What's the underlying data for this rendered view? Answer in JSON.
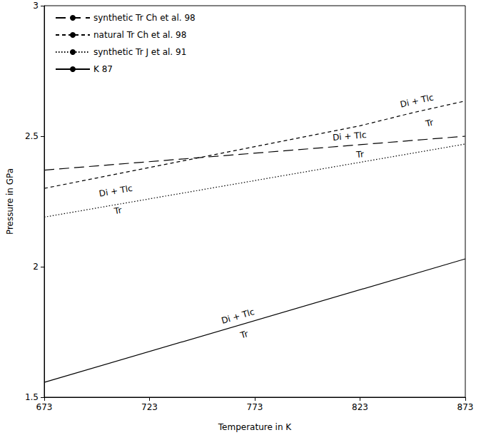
{
  "chart_data": {
    "type": "line",
    "x_label": "Temperature in K",
    "y_label": "Pressure in GPa",
    "xlim": [
      673,
      873
    ],
    "xticks": [
      673,
      723,
      773,
      823,
      873
    ],
    "ylim": [
      1.5,
      3
    ],
    "yticks": [
      1.5,
      2,
      2.5,
      3
    ],
    "grid": false,
    "legend": "upper left",
    "series": [
      {
        "name": "synthetic Tr Ch et al. 98",
        "color": "#000000",
        "line_style": "long_dash",
        "x": [
          673,
          873
        ],
        "values": [
          2.37,
          2.5
        ]
      },
      {
        "name": "natural Tr Ch et al. 98",
        "color": "#000000",
        "line_style": "dashed",
        "x": [
          673,
          698,
          723,
          748,
          773,
          798,
          823,
          848,
          873
        ],
        "values": [
          2.3,
          2.34,
          2.38,
          2.42,
          2.46,
          2.5,
          2.54,
          2.59,
          2.635
        ]
      },
      {
        "name": "synthetic Tr J et al. 91",
        "color": "#000000",
        "line_style": "dotted",
        "x": [
          673,
          873
        ],
        "values": [
          2.19,
          2.47
        ]
      },
      {
        "name": "K 87",
        "color": "#000000",
        "line_style": "solid",
        "x": [
          673,
          873
        ],
        "values": [
          1.557,
          2.03
        ]
      }
    ],
    "annotations": [
      {
        "text": "Di + Tlc",
        "series": "synthetic Tr Ch et al. 98",
        "x": 818,
        "y": 2.5
      },
      {
        "text": "Tr",
        "series": "synthetic Tr Ch et al. 98",
        "x": 823,
        "y": 2.43
      },
      {
        "text": "Di + Tlc",
        "series": "natural Tr Ch et al. 98",
        "x": 850,
        "y": 2.635
      },
      {
        "text": "Tr",
        "series": "natural Tr Ch et al. 98",
        "x": 856,
        "y": 2.55
      },
      {
        "text": "Di + Tlc",
        "series": "synthetic Tr J et al. 91",
        "x": 707,
        "y": 2.29
      },
      {
        "text": "Tr",
        "series": "synthetic Tr J et al. 91",
        "x": 708,
        "y": 2.215
      },
      {
        "text": "Di + Tlc",
        "series": "K 87",
        "x": 765,
        "y": 1.81
      },
      {
        "text": "Tr",
        "series": "K 87",
        "x": 768,
        "y": 1.74
      }
    ]
  }
}
